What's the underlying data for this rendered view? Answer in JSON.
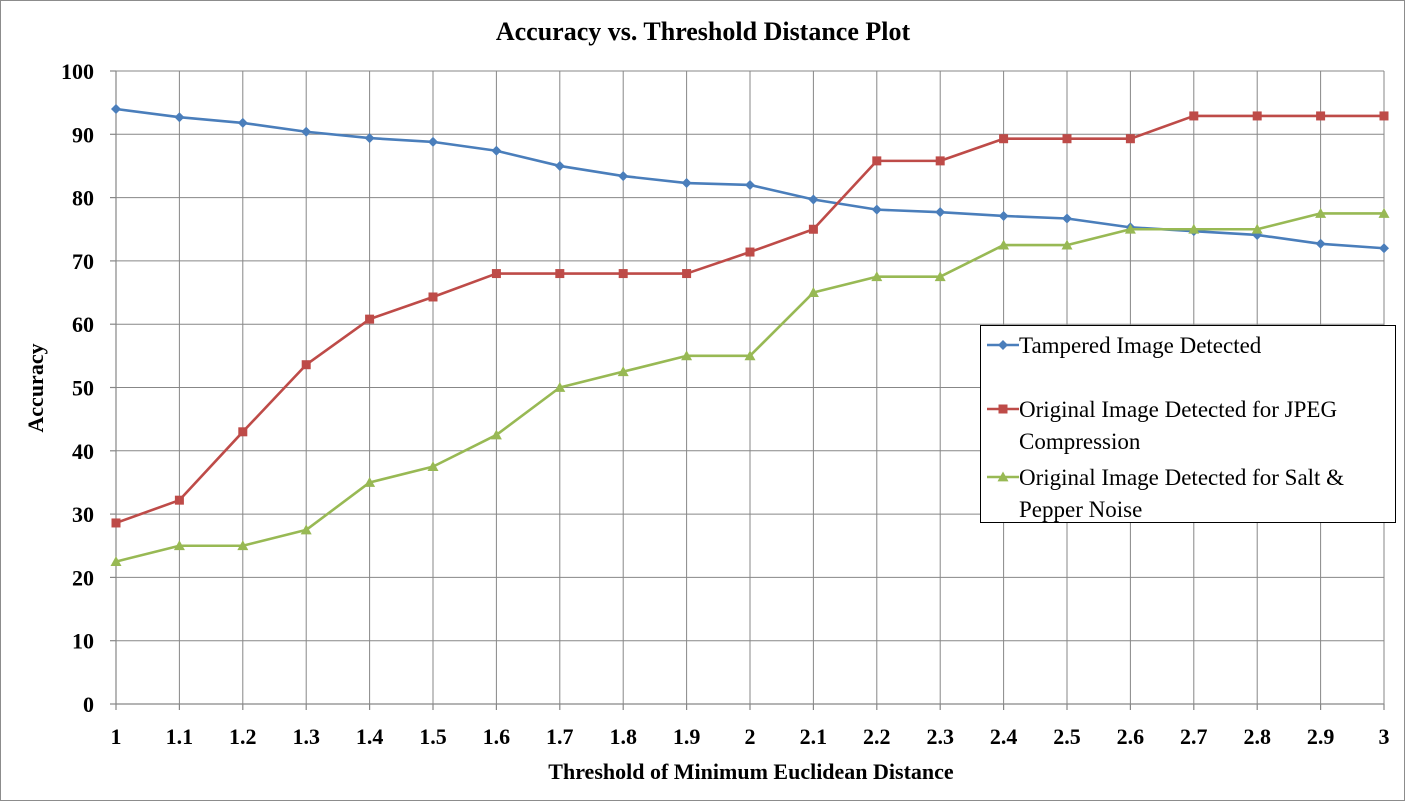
{
  "chart_data": {
    "type": "line",
    "title": "Accuracy vs. Threshold Distance Plot",
    "xlabel": "Threshold of Minimum Euclidean Distance",
    "ylabel": "Accuracy",
    "x": [
      "1",
      "1.1",
      "1.2",
      "1.3",
      "1.4",
      "1.5",
      "1.6",
      "1.7",
      "1.8",
      "1.9",
      "2",
      "2.1",
      "2.2",
      "2.3",
      "2.4",
      "2.5",
      "2.6",
      "2.7",
      "2.8",
      "2.9",
      "3"
    ],
    "ylim": [
      0,
      100
    ],
    "yticks": [
      "0",
      "10",
      "20",
      "30",
      "40",
      "50",
      "60",
      "70",
      "80",
      "90",
      "100"
    ],
    "grid": true,
    "legend_position": "right",
    "series": [
      {
        "name": "Tampered Image Detected",
        "color": "#4a7ebb",
        "marker": "diamond",
        "values": [
          94.0,
          92.7,
          91.8,
          90.4,
          89.4,
          88.8,
          87.4,
          85.0,
          83.4,
          82.3,
          82.0,
          79.7,
          78.1,
          77.7,
          77.1,
          76.7,
          75.3,
          74.7,
          74.1,
          72.7,
          72.0
        ]
      },
      {
        "name": "Original Image Detected for JPEG Compression",
        "color": "#be4b48",
        "marker": "square",
        "values": [
          28.6,
          32.2,
          43.0,
          53.6,
          60.8,
          64.3,
          68.0,
          68.0,
          68.0,
          68.0,
          71.4,
          75.0,
          85.8,
          85.8,
          89.3,
          89.3,
          89.3,
          92.9,
          92.9,
          92.9,
          92.9
        ]
      },
      {
        "name": "Original Image Detected for Salt & Pepper Noise",
        "color": "#98b954",
        "marker": "triangle",
        "values": [
          22.5,
          25.0,
          25.0,
          27.5,
          35.0,
          37.5,
          42.5,
          50.0,
          52.5,
          55.0,
          55.0,
          65.0,
          67.5,
          67.5,
          72.5,
          72.5,
          75.0,
          75.0,
          75.0,
          77.5,
          77.5
        ]
      }
    ]
  }
}
